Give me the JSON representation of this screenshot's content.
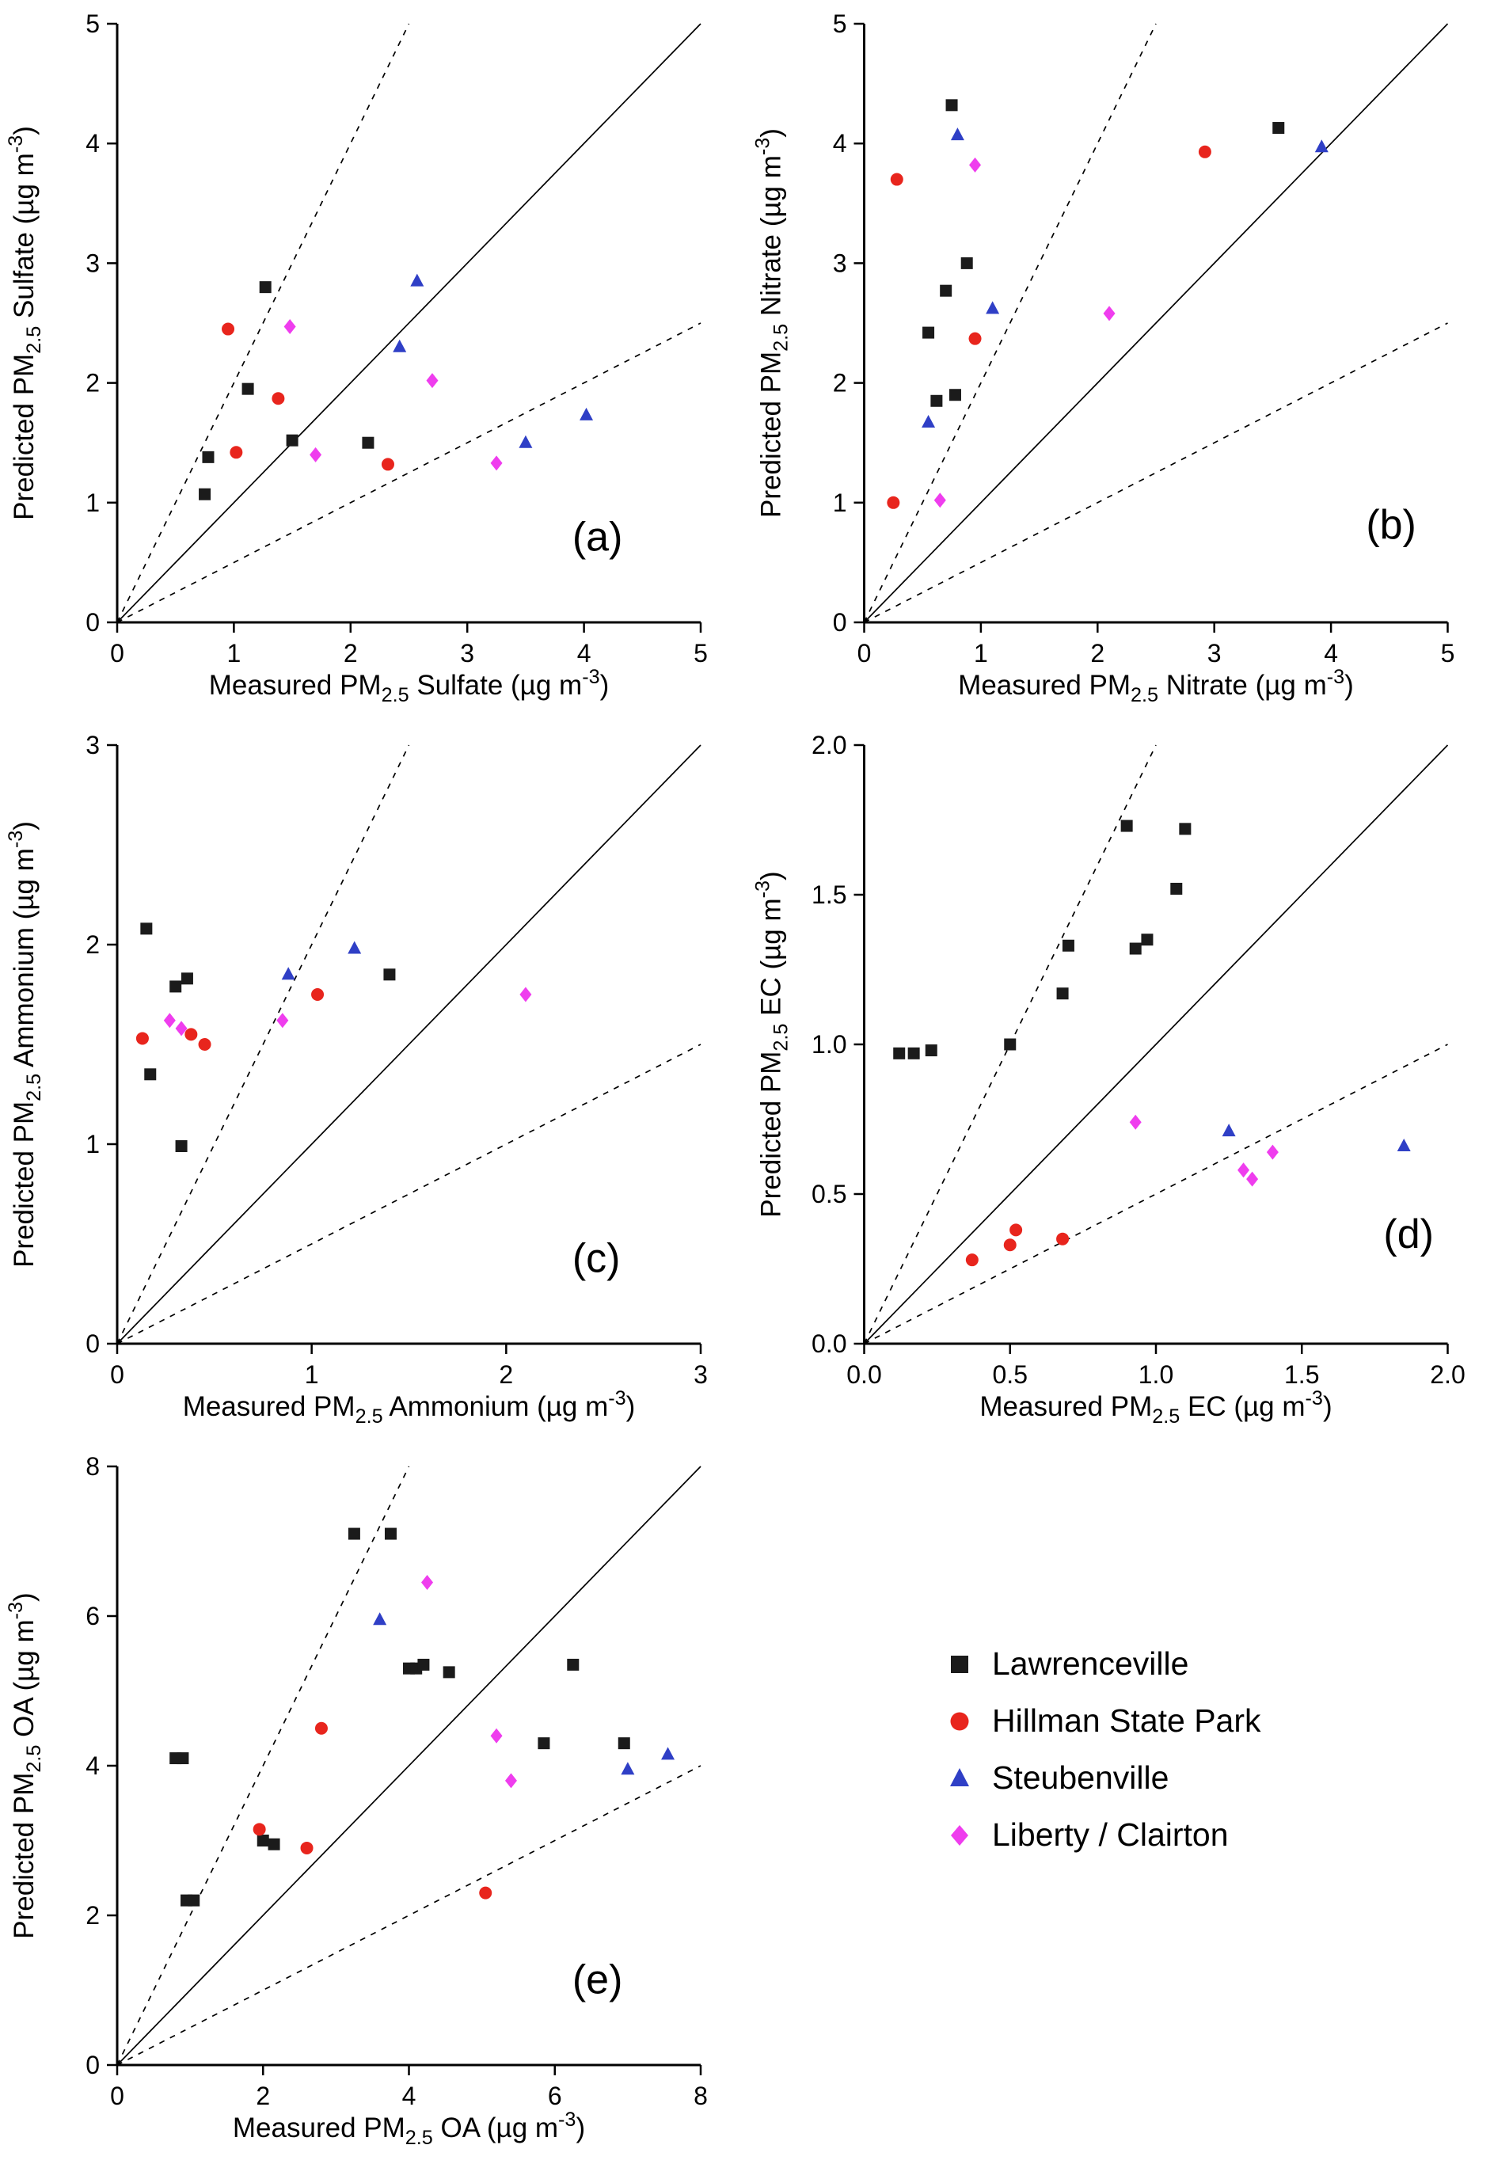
{
  "legend": {
    "items": [
      {
        "label": "Lawrenceville",
        "marker": "square",
        "color": "#1b1b1b"
      },
      {
        "label": "Hillman State Park",
        "marker": "circle",
        "color": "#e8251d"
      },
      {
        "label": "Steubenville",
        "marker": "triangle",
        "color": "#2f3fc6"
      },
      {
        "label": "Liberty / Clairton",
        "marker": "diamond",
        "color": "#ef3dee"
      }
    ]
  },
  "chart_data": [
    {
      "type": "scatter",
      "panel_label": "(a)",
      "label_pos": [
        0.78,
        0.88
      ],
      "xlabel": "Measured PM_{2.5} Sulfate  (µg m^{-3})",
      "ylabel": "Predicted PM_{2.5} Sulfate  (µg m^{-3})",
      "xlim": [
        0,
        5
      ],
      "ylim": [
        0,
        5
      ],
      "tick_values": [
        0,
        1,
        2,
        3,
        4,
        5
      ],
      "tick_labels": [
        "0",
        "1",
        "2",
        "3",
        "4",
        "5"
      ],
      "reference_lines": [
        {
          "slope": 1,
          "style": "solid"
        },
        {
          "slope": 2,
          "style": "dashed"
        },
        {
          "slope": 0.5,
          "style": "dashed"
        }
      ],
      "series": [
        {
          "name": "Lawrenceville",
          "marker": "square",
          "color": "#1b1b1b",
          "points": [
            [
              0.75,
              1.07
            ],
            [
              0.78,
              1.38
            ],
            [
              1.12,
              1.95
            ],
            [
              1.27,
              2.8
            ],
            [
              1.5,
              1.52
            ],
            [
              2.15,
              1.5
            ]
          ]
        },
        {
          "name": "Hillman State Park",
          "marker": "circle",
          "color": "#e8251d",
          "points": [
            [
              0.95,
              2.45
            ],
            [
              1.02,
              1.42
            ],
            [
              1.38,
              1.87
            ],
            [
              2.32,
              1.32
            ]
          ]
        },
        {
          "name": "Steubenville",
          "marker": "triangle",
          "color": "#2f3fc6",
          "points": [
            [
              2.42,
              2.3
            ],
            [
              2.57,
              2.85
            ],
            [
              3.5,
              1.5
            ],
            [
              4.02,
              1.73
            ]
          ]
        },
        {
          "name": "Liberty / Clairton",
          "marker": "diamond",
          "color": "#ef3dee",
          "points": [
            [
              1.48,
              2.47
            ],
            [
              1.7,
              1.4
            ],
            [
              2.7,
              2.02
            ],
            [
              3.25,
              1.33
            ]
          ]
        }
      ]
    },
    {
      "type": "scatter",
      "panel_label": "(b)",
      "label_pos": [
        0.86,
        0.86
      ],
      "xlabel": "Measured PM_{2.5} Nitrate  (µg m^{-3})",
      "ylabel": "Predicted PM_{2.5} Nitrate  (µg m^{-3})",
      "xlim": [
        0,
        5
      ],
      "ylim": [
        0,
        5
      ],
      "tick_values": [
        0,
        1,
        2,
        3,
        4,
        5
      ],
      "tick_labels": [
        "0",
        "1",
        "2",
        "3",
        "4",
        "5"
      ],
      "reference_lines": [
        {
          "slope": 1,
          "style": "solid"
        },
        {
          "slope": 2,
          "style": "dashed"
        },
        {
          "slope": 0.5,
          "style": "dashed"
        }
      ],
      "series": [
        {
          "name": "Lawrenceville",
          "marker": "square",
          "color": "#1b1b1b",
          "points": [
            [
              0.55,
              2.42
            ],
            [
              0.62,
              1.85
            ],
            [
              0.7,
              2.77
            ],
            [
              0.75,
              4.32
            ],
            [
              0.78,
              1.9
            ],
            [
              0.88,
              3.0
            ],
            [
              3.55,
              4.13
            ]
          ]
        },
        {
          "name": "Hillman State Park",
          "marker": "circle",
          "color": "#e8251d",
          "points": [
            [
              0.25,
              1.0
            ],
            [
              0.28,
              3.7
            ],
            [
              0.95,
              2.37
            ],
            [
              2.92,
              3.93
            ]
          ]
        },
        {
          "name": "Steubenville",
          "marker": "triangle",
          "color": "#2f3fc6",
          "points": [
            [
              0.55,
              1.67
            ],
            [
              0.8,
              4.07
            ],
            [
              1.1,
              2.62
            ],
            [
              3.92,
              3.97
            ]
          ]
        },
        {
          "name": "Liberty / Clairton",
          "marker": "diamond",
          "color": "#ef3dee",
          "points": [
            [
              0.65,
              1.02
            ],
            [
              0.95,
              3.82
            ],
            [
              2.1,
              2.58
            ]
          ]
        }
      ]
    },
    {
      "type": "scatter",
      "panel_label": "(c)",
      "label_pos": [
        0.78,
        0.88
      ],
      "xlabel": "Measured PM_{2.5} Ammonium  (µg m^{-3})",
      "ylabel": "Predicted PM_{2.5} Ammonium  (µg m^{-3})",
      "xlim": [
        0,
        3
      ],
      "ylim": [
        0,
        3
      ],
      "tick_values": [
        0,
        1,
        2,
        3
      ],
      "tick_labels": [
        "0",
        "1",
        "2",
        "3"
      ],
      "reference_lines": [
        {
          "slope": 1,
          "style": "solid"
        },
        {
          "slope": 2,
          "style": "dashed"
        },
        {
          "slope": 0.5,
          "style": "dashed"
        }
      ],
      "series": [
        {
          "name": "Lawrenceville",
          "marker": "square",
          "color": "#1b1b1b",
          "points": [
            [
              0.15,
              2.08
            ],
            [
              0.17,
              1.35
            ],
            [
              0.3,
              1.79
            ],
            [
              0.36,
              1.83
            ],
            [
              0.33,
              0.99
            ],
            [
              1.4,
              1.85
            ]
          ]
        },
        {
          "name": "Hillman State Park",
          "marker": "circle",
          "color": "#e8251d",
          "points": [
            [
              0.13,
              1.53
            ],
            [
              0.38,
              1.55
            ],
            [
              0.45,
              1.5
            ],
            [
              1.03,
              1.75
            ]
          ]
        },
        {
          "name": "Steubenville",
          "marker": "triangle",
          "color": "#2f3fc6",
          "points": [
            [
              0.88,
              1.85
            ],
            [
              1.22,
              1.98
            ]
          ]
        },
        {
          "name": "Liberty / Clairton",
          "marker": "diamond",
          "color": "#ef3dee",
          "points": [
            [
              0.27,
              1.62
            ],
            [
              0.33,
              1.58
            ],
            [
              0.85,
              1.62
            ],
            [
              2.1,
              1.75
            ]
          ]
        }
      ]
    },
    {
      "type": "scatter",
      "panel_label": "(d)",
      "label_pos": [
        0.89,
        0.84
      ],
      "xlabel": "Measured PM_{2.5} EC  (µg m^{-3})",
      "ylabel": "Predicted PM_{2.5} EC  (µg m^{-3})",
      "xlim": [
        0,
        2
      ],
      "ylim": [
        0,
        2
      ],
      "tick_values": [
        0,
        0.5,
        1,
        1.5,
        2
      ],
      "tick_labels": [
        "0.0",
        "0.5",
        "1.0",
        "1.5",
        "2.0"
      ],
      "reference_lines": [
        {
          "slope": 1,
          "style": "solid"
        },
        {
          "slope": 2,
          "style": "dashed"
        },
        {
          "slope": 0.5,
          "style": "dashed"
        }
      ],
      "series": [
        {
          "name": "Lawrenceville",
          "marker": "square",
          "color": "#1b1b1b",
          "points": [
            [
              0.12,
              0.97
            ],
            [
              0.17,
              0.97
            ],
            [
              0.23,
              0.98
            ],
            [
              0.5,
              1.0
            ],
            [
              0.68,
              1.17
            ],
            [
              0.7,
              1.33
            ],
            [
              0.9,
              1.73
            ],
            [
              0.93,
              1.32
            ],
            [
              0.97,
              1.35
            ],
            [
              1.07,
              1.52
            ],
            [
              1.1,
              1.72
            ]
          ]
        },
        {
          "name": "Hillman State Park",
          "marker": "circle",
          "color": "#e8251d",
          "points": [
            [
              0.37,
              0.28
            ],
            [
              0.5,
              0.33
            ],
            [
              0.52,
              0.38
            ],
            [
              0.68,
              0.35
            ]
          ]
        },
        {
          "name": "Steubenville",
          "marker": "triangle",
          "color": "#2f3fc6",
          "points": [
            [
              1.25,
              0.71
            ],
            [
              1.85,
              0.66
            ]
          ]
        },
        {
          "name": "Liberty / Clairton",
          "marker": "diamond",
          "color": "#ef3dee",
          "points": [
            [
              0.93,
              0.74
            ],
            [
              1.3,
              0.58
            ],
            [
              1.33,
              0.55
            ],
            [
              1.4,
              0.64
            ]
          ]
        }
      ]
    },
    {
      "type": "scatter",
      "panel_label": "(e)",
      "label_pos": [
        0.78,
        0.88
      ],
      "xlabel": "Measured PM_{2.5} OA  (µg m^{-3})",
      "ylabel": "Predicted PM_{2.5} OA  (µg m^{-3})",
      "xlim": [
        0,
        8
      ],
      "ylim": [
        0,
        8
      ],
      "tick_values": [
        0,
        2,
        4,
        6,
        8
      ],
      "tick_labels": [
        "0",
        "2",
        "4",
        "6",
        "8"
      ],
      "reference_lines": [
        {
          "slope": 1,
          "style": "solid"
        },
        {
          "slope": 2,
          "style": "dashed"
        },
        {
          "slope": 0.5,
          "style": "dashed"
        }
      ],
      "series": [
        {
          "name": "Lawrenceville",
          "marker": "square",
          "color": "#1b1b1b",
          "points": [
            [
              0.8,
              4.1
            ],
            [
              0.9,
              4.1
            ],
            [
              0.95,
              2.2
            ],
            [
              1.05,
              2.2
            ],
            [
              2.0,
              3.0
            ],
            [
              2.15,
              2.95
            ],
            [
              3.25,
              7.1
            ],
            [
              3.75,
              7.1
            ],
            [
              4.0,
              5.3
            ],
            [
              4.1,
              5.3
            ],
            [
              4.2,
              5.35
            ],
            [
              4.55,
              5.25
            ],
            [
              5.85,
              4.3
            ],
            [
              6.25,
              5.35
            ],
            [
              6.95,
              4.3
            ]
          ]
        },
        {
          "name": "Hillman State Park",
          "marker": "circle",
          "color": "#e8251d",
          "points": [
            [
              1.95,
              3.15
            ],
            [
              2.6,
              2.9
            ],
            [
              2.8,
              4.5
            ],
            [
              5.05,
              2.3
            ]
          ]
        },
        {
          "name": "Steubenville",
          "marker": "triangle",
          "color": "#2f3fc6",
          "points": [
            [
              3.6,
              5.95
            ],
            [
              7.0,
              3.95
            ],
            [
              7.55,
              4.15
            ]
          ]
        },
        {
          "name": "Liberty / Clairton",
          "marker": "diamond",
          "color": "#ef3dee",
          "points": [
            [
              4.25,
              6.45
            ],
            [
              5.2,
              4.4
            ],
            [
              5.4,
              3.8
            ]
          ]
        }
      ]
    }
  ]
}
